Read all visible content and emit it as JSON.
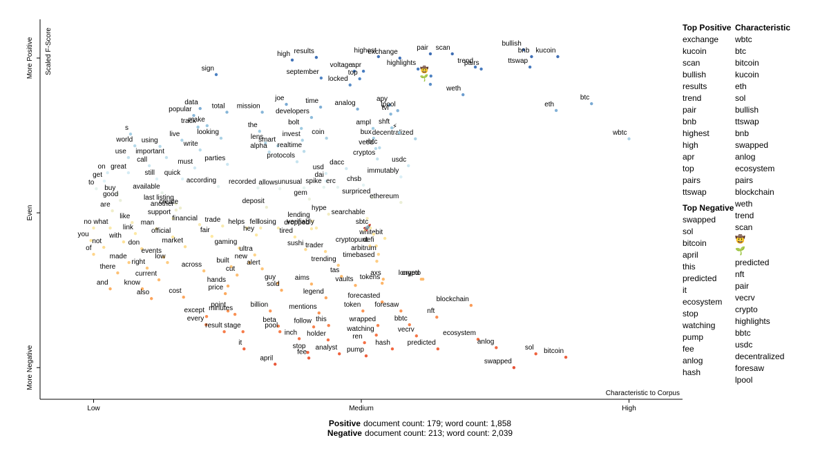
{
  "chart_data": {
    "type": "scatter",
    "x_label": "Characteristic to Corpus",
    "y_label": "Scaled F-Score",
    "xlim": [
      -0.1,
      1.1
    ],
    "ylim": [
      -1.2,
      1.25
    ],
    "xticks": [
      {
        "value": 0,
        "label": "Low"
      },
      {
        "value": 0.5,
        "label": "Medium"
      },
      {
        "value": 1,
        "label": "High"
      }
    ],
    "yticks": [
      {
        "value": -1,
        "label": "More Negative"
      },
      {
        "value": 0,
        "label": "Even"
      },
      {
        "value": 1,
        "label": "More Positive"
      }
    ],
    "color_scale": [
      "#d73027",
      "#f46d43",
      "#fdae61",
      "#fee8a0",
      "#e0f3f8",
      "#9ecae1",
      "#4a7fc1",
      "#2c4f9e"
    ],
    "labels": [
      "high",
      "results",
      "highest",
      "pair",
      "scan",
      "bullish",
      "bnb",
      "kucoin",
      "sign",
      "voltage",
      "apr",
      "exchange",
      "september",
      "highlights",
      "trend",
      "ttswap",
      "pairs",
      "locked",
      "top",
      "weth",
      "data",
      "joe",
      "time",
      "analog",
      "apy",
      "popular",
      "total",
      "mission",
      "developers",
      "tvl",
      "lpool",
      "btc",
      "eth",
      "track",
      "make",
      "the",
      "bolt",
      "ampl",
      "shft",
      "s",
      "coin",
      "bux",
      "wbtc",
      "world",
      "using",
      "live",
      "looking",
      "lens",
      "smart",
      "invest",
      "decentralized",
      "veed",
      "rbtc",
      "realtime",
      "alpha",
      "write",
      "important",
      "protocols",
      "cryptos",
      "use",
      "call",
      "parties",
      "usdc",
      "on",
      "must",
      "great",
      "dacc",
      "usd",
      "get",
      "quick",
      "still",
      "dai",
      "immutably",
      "to",
      "according",
      "recorded",
      "allows",
      "unusual",
      "spike",
      "erc",
      "chsb",
      "buy",
      "good",
      "available",
      "gem",
      "surpriced",
      "last listing",
      "are",
      "ethereum",
      "another",
      "create",
      "deposit",
      "like",
      "support",
      "lending",
      "hype",
      "searchable",
      "financial",
      "trade",
      "helps",
      "fell",
      "losing",
      "dropped",
      "verifiably",
      "sbtc",
      "no",
      "what",
      "link",
      "man",
      "fair",
      "hey",
      "tired",
      "whitebit",
      "you",
      "official",
      "with",
      "don",
      "market",
      "gaming",
      "sushi",
      "cryptopunt",
      "defi",
      "not",
      "trader",
      "ultra",
      "arbitrum",
      "of",
      "events",
      "made",
      "low",
      "new",
      "timebased",
      "built",
      "trending",
      "right",
      "across",
      "alert",
      "there",
      "cut",
      "tas",
      "longed",
      "axs",
      "crypto",
      "and",
      "know",
      "current",
      "hands",
      "guy",
      "sold",
      "aims",
      "vaults",
      "tokens",
      "also",
      "cost",
      "price",
      "legend",
      "forecasted",
      "blockchain",
      "point",
      "minutes",
      "billion",
      "mentions",
      "token",
      "foresaw",
      "nft",
      "except",
      "every",
      "this",
      "follow",
      "wrapped",
      "bbtc",
      "beta",
      "stage",
      "pool",
      "result",
      "inch",
      "holder",
      "watching",
      "vecrv",
      "ecosystem",
      "ren",
      "anlog",
      "hash",
      "predicted",
      "it",
      "stop",
      "analyst",
      "pump",
      "sol",
      "bitcoin",
      "fee",
      "swapped",
      "april",
      "🤠",
      "🌱",
      "⚡",
      "🚀"
    ],
    "x": [
      0.371,
      0.416,
      0.532,
      0.629,
      0.67,
      0.803,
      0.818,
      0.867,
      0.229,
      0.487,
      0.504,
      0.572,
      0.425,
      0.606,
      0.713,
      0.815,
      0.724,
      0.479,
      0.497,
      0.69,
      0.199,
      0.36,
      0.424,
      0.493,
      0.553,
      0.187,
      0.249,
      0.315,
      0.407,
      0.555,
      0.568,
      0.93,
      0.864,
      0.195,
      0.212,
      0.31,
      0.388,
      0.522,
      0.557,
      0.069,
      0.435,
      0.523,
      1.0,
      0.077,
      0.124,
      0.165,
      0.238,
      0.321,
      0.344,
      0.39,
      0.601,
      0.527,
      0.534,
      0.393,
      0.328,
      0.199,
      0.136,
      0.38,
      0.53,
      0.065,
      0.104,
      0.25,
      0.588,
      0.026,
      0.189,
      0.065,
      0.472,
      0.434,
      0.02,
      0.166,
      0.118,
      0.434,
      0.574,
      0.005,
      0.233,
      0.307,
      0.348,
      0.393,
      0.43,
      0.456,
      0.504,
      0.045,
      0.05,
      0.128,
      0.403,
      0.521,
      0.154,
      0.035,
      0.574,
      0.154,
      0.162,
      0.323,
      0.072,
      0.148,
      0.408,
      0.439,
      0.511,
      0.198,
      0.241,
      0.286,
      0.312,
      0.345,
      0.407,
      0.416,
      0.517,
      0.0,
      0.031,
      0.078,
      0.117,
      0.221,
      0.304,
      0.376,
      0.544,
      -0.005,
      0.148,
      0.056,
      0.09,
      0.171,
      0.272,
      0.396,
      0.516,
      0.528,
      0.019,
      0.433,
      0.301,
      0.532,
      0.0,
      0.131,
      0.066,
      0.138,
      0.291,
      0.529,
      0.257,
      0.457,
      0.1,
      0.206,
      0.315,
      0.045,
      0.268,
      0.463,
      0.612,
      0.541,
      0.615,
      0.031,
      0.091,
      0.122,
      0.251,
      0.344,
      0.351,
      0.407,
      0.489,
      0.539,
      0.108,
      0.168,
      0.246,
      0.434,
      0.539,
      0.705,
      0.251,
      0.264,
      0.33,
      0.421,
      0.503,
      0.574,
      0.641,
      0.211,
      0.21,
      0.439,
      0.411,
      0.531,
      0.59,
      0.345,
      0.279,
      0.348,
      0.244,
      0.384,
      0.438,
      0.528,
      0.603,
      0.718,
      0.506,
      0.752,
      0.558,
      0.643,
      0.281,
      0.4,
      0.459,
      0.509,
      0.826,
      0.882,
      0.402,
      0.785,
      0.339,
      0.63,
      0.629,
      0.571,
      0.523
    ],
    "values": [
      0.987,
      1.004,
      1.009,
      1.027,
      1.027,
      1.054,
      1.009,
      1.009,
      0.893,
      0.915,
      0.915,
      1.0,
      0.871,
      0.929,
      0.942,
      0.942,
      0.929,
      0.826,
      0.866,
      0.763,
      0.674,
      0.701,
      0.683,
      0.67,
      0.696,
      0.629,
      0.65,
      0.65,
      0.616,
      0.638,
      0.66,
      0.705,
      0.661,
      0.554,
      0.563,
      0.527,
      0.545,
      0.545,
      0.549,
      0.509,
      0.482,
      0.482,
      0.478,
      0.433,
      0.429,
      0.469,
      0.482,
      0.451,
      0.433,
      0.469,
      0.478,
      0.415,
      0.42,
      0.397,
      0.393,
      0.406,
      0.357,
      0.33,
      0.348,
      0.357,
      0.304,
      0.313,
      0.304,
      0.259,
      0.29,
      0.259,
      0.286,
      0.254,
      0.205,
      0.219,
      0.219,
      0.205,
      0.232,
      0.156,
      0.17,
      0.161,
      0.156,
      0.161,
      0.165,
      0.165,
      0.179,
      0.121,
      0.08,
      0.129,
      0.089,
      0.098,
      0.058,
      0.013,
      0.067,
      0.018,
      0.031,
      0.036,
      -0.063,
      -0.036,
      -0.054,
      -0.009,
      -0.036,
      -0.076,
      -0.085,
      -0.098,
      -0.098,
      -0.098,
      -0.103,
      -0.098,
      -0.098,
      -0.098,
      -0.098,
      -0.134,
      -0.103,
      -0.152,
      -0.143,
      -0.156,
      -0.165,
      -0.179,
      -0.156,
      -0.188,
      -0.232,
      -0.219,
      -0.228,
      -0.237,
      -0.214,
      -0.214,
      -0.223,
      -0.25,
      -0.272,
      -0.268,
      -0.268,
      -0.286,
      -0.321,
      -0.321,
      -0.321,
      -0.313,
      -0.348,
      -0.339,
      -0.357,
      -0.375,
      -0.362,
      -0.388,
      -0.402,
      -0.411,
      -0.429,
      -0.429,
      -0.429,
      -0.491,
      -0.491,
      -0.433,
      -0.473,
      -0.455,
      -0.5,
      -0.46,
      -0.469,
      -0.455,
      -0.554,
      -0.545,
      -0.522,
      -0.549,
      -0.576,
      -0.598,
      -0.634,
      -0.656,
      -0.634,
      -0.647,
      -0.634,
      -0.634,
      -0.674,
      -0.67,
      -0.723,
      -0.728,
      -0.737,
      -0.728,
      -0.723,
      -0.732,
      -0.768,
      -0.768,
      -0.768,
      -0.813,
      -0.821,
      -0.79,
      -0.795,
      -0.817,
      -0.839,
      -0.871,
      -0.879,
      -0.879,
      -0.879,
      -0.902,
      -0.911,
      -0.924,
      -0.911,
      -0.933,
      -0.938,
      -1.0,
      -0.978,
      0.884,
      0.83,
      0.518,
      -0.138
    ]
  },
  "top_positive": {
    "title": "Top Positive",
    "terms": [
      "exchange",
      "kucoin",
      "scan",
      "bullish",
      "results",
      "trend",
      "pair",
      "bnb",
      "highest",
      "high",
      "apr",
      "top",
      "pairs",
      "ttswap"
    ]
  },
  "top_negative": {
    "title": "Top Negative",
    "terms": [
      "swapped",
      "sol",
      "bitcoin",
      "april",
      "this",
      "predicted",
      "it",
      "ecosystem",
      "stop",
      "watching",
      "pump",
      "fee",
      "anlog",
      "hash"
    ]
  },
  "characteristic": {
    "title": "Characteristic",
    "terms": [
      "wbtc",
      "btc",
      "bitcoin",
      "kucoin",
      "eth",
      "sol",
      "bullish",
      "ttswap",
      "bnb",
      "swapped",
      "anlog",
      "ecosystem",
      "pairs",
      "blockchain",
      "weth",
      "trend",
      "scan",
      "🤠",
      "🌱",
      "predicted",
      "nft",
      "pair",
      "vecrv",
      "crypto",
      "highlights",
      "bbtc",
      "usdc",
      "decentralized",
      "foresaw",
      "lpool"
    ]
  },
  "footer": [
    {
      "bold": "Positive",
      "text": "document count: 179; word count: 1,858"
    },
    {
      "bold": "Negative",
      "text": "document count: 213; word count: 2,039"
    }
  ]
}
